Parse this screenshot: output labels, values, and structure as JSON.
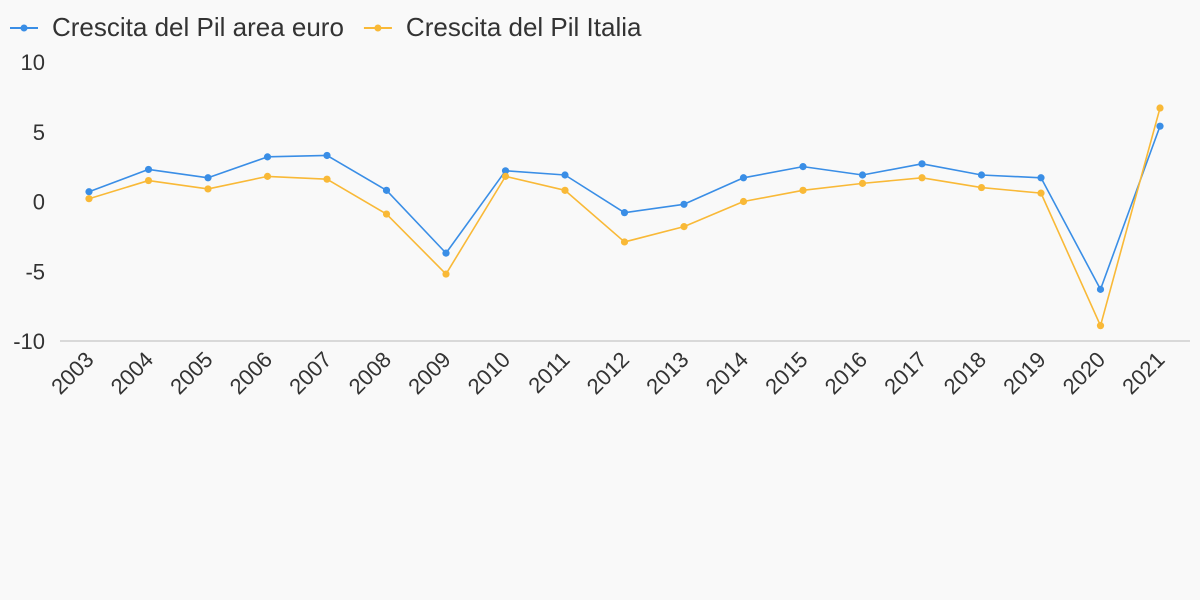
{
  "chart_data": {
    "type": "line",
    "title": "",
    "xlabel": "",
    "ylabel": "",
    "categories": [
      "2003",
      "2004",
      "2005",
      "2006",
      "2007",
      "2008",
      "2009",
      "2010",
      "2011",
      "2012",
      "2013",
      "2014",
      "2015",
      "2016",
      "2017",
      "2018",
      "2019",
      "2020",
      "2021"
    ],
    "ylim": [
      -10,
      10
    ],
    "yticks": [
      "10",
      "5",
      "0",
      "-5",
      "-10"
    ],
    "grid": false,
    "legend_position": "top-left",
    "series": [
      {
        "name": "Crescita del Pil area euro",
        "color": "#3a8ee6",
        "values": [
          0.7,
          2.3,
          1.7,
          3.2,
          3.3,
          0.8,
          -3.7,
          2.2,
          1.9,
          -0.8,
          -0.2,
          1.7,
          2.5,
          1.9,
          2.7,
          1.9,
          1.7,
          -6.3,
          5.4
        ]
      },
      {
        "name": "Crescita del Pil Italia",
        "color": "#f9b937",
        "values": [
          0.2,
          1.5,
          0.9,
          1.8,
          1.6,
          -0.9,
          -5.2,
          1.8,
          0.8,
          -2.9,
          -1.8,
          0.0,
          0.8,
          1.3,
          1.7,
          1.0,
          0.6,
          -8.9,
          6.7
        ]
      }
    ]
  }
}
